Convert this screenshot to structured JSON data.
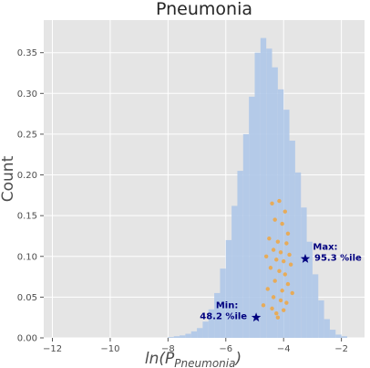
{
  "chart_data": {
    "type": "histogram",
    "title": "Pneumonia",
    "ylabel": "Count",
    "xlabel": {
      "prefix": "ln(P",
      "subscript": "Pneumonia",
      "suffix": ")"
    },
    "xlim": [
      -12.3,
      -1.2
    ],
    "ylim": [
      0,
      0.39
    ],
    "x_ticks": [
      -12,
      -10,
      -8,
      -6,
      -4,
      -2
    ],
    "x_tick_labels": [
      "−12",
      "−10",
      "−8",
      "−6",
      "−4",
      "−2"
    ],
    "y_ticks": [
      0.0,
      0.05,
      0.1,
      0.15,
      0.2,
      0.25,
      0.3,
      0.35
    ],
    "y_tick_labels": [
      "0.00",
      "0.05",
      "0.10",
      "0.15",
      "0.20",
      "0.25",
      "0.30",
      "0.35"
    ],
    "grid": true,
    "histogram": {
      "color": "#aec7e8",
      "bin_width": 0.2,
      "bins": [
        {
          "x": -8.0,
          "y": 0.001
        },
        {
          "x": -7.8,
          "y": 0.002
        },
        {
          "x": -7.6,
          "y": 0.003
        },
        {
          "x": -7.4,
          "y": 0.005
        },
        {
          "x": -7.2,
          "y": 0.008
        },
        {
          "x": -7.0,
          "y": 0.012
        },
        {
          "x": -6.8,
          "y": 0.02
        },
        {
          "x": -6.6,
          "y": 0.035
        },
        {
          "x": -6.4,
          "y": 0.055
        },
        {
          "x": -6.2,
          "y": 0.085
        },
        {
          "x": -6.0,
          "y": 0.12
        },
        {
          "x": -5.8,
          "y": 0.162
        },
        {
          "x": -5.6,
          "y": 0.205
        },
        {
          "x": -5.4,
          "y": 0.25
        },
        {
          "x": -5.2,
          "y": 0.296
        },
        {
          "x": -5.0,
          "y": 0.35
        },
        {
          "x": -4.8,
          "y": 0.368
        },
        {
          "x": -4.6,
          "y": 0.355
        },
        {
          "x": -4.4,
          "y": 0.332
        },
        {
          "x": -4.2,
          "y": 0.305
        },
        {
          "x": -4.0,
          "y": 0.28
        },
        {
          "x": -3.8,
          "y": 0.242
        },
        {
          "x": -3.6,
          "y": 0.203
        },
        {
          "x": -3.4,
          "y": 0.16
        },
        {
          "x": -3.2,
          "y": 0.118
        },
        {
          "x": -3.0,
          "y": 0.078
        },
        {
          "x": -2.8,
          "y": 0.046
        },
        {
          "x": -2.6,
          "y": 0.023
        },
        {
          "x": -2.4,
          "y": 0.01
        },
        {
          "x": -2.2,
          "y": 0.004
        },
        {
          "x": -2.0,
          "y": 0.002
        }
      ]
    },
    "scatter": {
      "color": "#f0a640",
      "points": [
        {
          "x": -4.4,
          "y": 0.165
        },
        {
          "x": -4.15,
          "y": 0.168
        },
        {
          "x": -3.95,
          "y": 0.155
        },
        {
          "x": -4.3,
          "y": 0.145
        },
        {
          "x": -4.05,
          "y": 0.14
        },
        {
          "x": -3.85,
          "y": 0.128
        },
        {
          "x": -4.5,
          "y": 0.122
        },
        {
          "x": -4.2,
          "y": 0.118
        },
        {
          "x": -3.9,
          "y": 0.116
        },
        {
          "x": -4.35,
          "y": 0.108
        },
        {
          "x": -4.1,
          "y": 0.105
        },
        {
          "x": -3.8,
          "y": 0.102
        },
        {
          "x": -4.6,
          "y": 0.1
        },
        {
          "x": -4.25,
          "y": 0.096
        },
        {
          "x": -4.0,
          "y": 0.094
        },
        {
          "x": -3.75,
          "y": 0.09
        },
        {
          "x": -4.45,
          "y": 0.086
        },
        {
          "x": -4.15,
          "y": 0.082
        },
        {
          "x": -3.95,
          "y": 0.078
        },
        {
          "x": -4.3,
          "y": 0.07
        },
        {
          "x": -3.85,
          "y": 0.066
        },
        {
          "x": -4.55,
          "y": 0.06
        },
        {
          "x": -4.05,
          "y": 0.058
        },
        {
          "x": -3.7,
          "y": 0.055
        },
        {
          "x": -4.35,
          "y": 0.05
        },
        {
          "x": -4.1,
          "y": 0.046
        },
        {
          "x": -3.9,
          "y": 0.043
        },
        {
          "x": -4.4,
          "y": 0.036
        },
        {
          "x": -4.0,
          "y": 0.034
        },
        {
          "x": -4.25,
          "y": 0.03
        },
        {
          "x": -4.2,
          "y": 0.025
        },
        {
          "x": -4.7,
          "y": 0.04
        }
      ]
    },
    "annotations": [
      {
        "label_lines": [
          "Min:",
          "48.2 %ile"
        ],
        "x": -4.95,
        "y": 0.025,
        "marker": "star",
        "color": "#00007f",
        "text_anchor": "left"
      },
      {
        "label_lines": [
          "Max:",
          "95.3 %ile"
        ],
        "x": -3.25,
        "y": 0.097,
        "marker": "star",
        "color": "#00007f",
        "text_anchor": "right"
      }
    ]
  }
}
